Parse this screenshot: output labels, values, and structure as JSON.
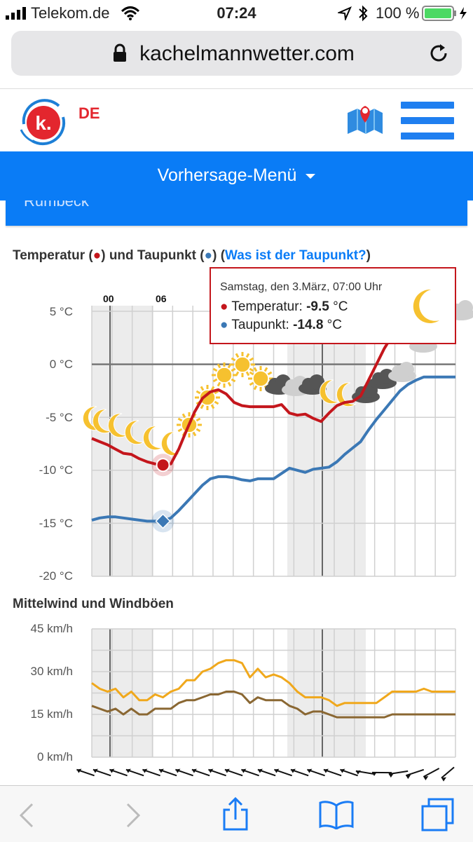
{
  "status_bar": {
    "carrier": "Telekom.de",
    "time": "07:24",
    "battery_percent": "100 %",
    "battery_level": 1.0
  },
  "browser": {
    "url": "kachelmannwetter.com"
  },
  "header": {
    "logo_letter": "k.",
    "language": "DE"
  },
  "menu": {
    "label": "Vorhersage-Menü",
    "location_partial": "Rumbeck"
  },
  "temp_chart_title": {
    "part1": "Temperatur (",
    "dot1": "●",
    "part2": ") und Taupunkt (",
    "dot2": "●",
    "part3": ") (",
    "link": "Was ist der Taupunkt?",
    "part4": ")"
  },
  "tooltip": {
    "date": "Samstag, den 3.März, 07:00 Uhr",
    "temp_label": "Temperatur: ",
    "temp_value": "-9.5",
    "temp_unit": " °C",
    "dew_label": "Taupunkt: ",
    "dew_value": "-14.8",
    "dew_unit": " °C"
  },
  "wind_chart_title": "Mittelwind und Windböen",
  "chart_data": [
    {
      "type": "line",
      "hour_labels": [
        "00",
        "06"
      ],
      "x": [
        0,
        1,
        2,
        3,
        4,
        5,
        6,
        7,
        8,
        9,
        10,
        11,
        12,
        13,
        14,
        15,
        16,
        17,
        18,
        19,
        20,
        21,
        22,
        23,
        24,
        25,
        26,
        27,
        28,
        29,
        30,
        31,
        32,
        33,
        34,
        35,
        36,
        37,
        38,
        39,
        40,
        41,
        42,
        43,
        44,
        45,
        46
      ],
      "series": [
        {
          "name": "Temperatur",
          "color": "#c4161c",
          "values": [
            -7.0,
            -7.3,
            -7.6,
            -8.0,
            -8.4,
            -8.5,
            -8.9,
            -9.2,
            -9.4,
            -9.5,
            -9.4,
            -8.0,
            -6.2,
            -4.5,
            -3.2,
            -2.6,
            -2.4,
            -2.8,
            -3.6,
            -3.9,
            -4.0,
            -4.0,
            -4.0,
            -4.0,
            -3.8,
            -4.6,
            -4.8,
            -4.7,
            -5.1,
            -5.4,
            -4.6,
            -3.9,
            -3.6,
            -3.5,
            -3.0,
            -1.5,
            0.0,
            1.5,
            2.7,
            3.0,
            3.2,
            3.4,
            3.6,
            3.6,
            3.6,
            3.6,
            3.6
          ]
        },
        {
          "name": "Taupunkt",
          "color": "#3b78b5",
          "values": [
            -14.7,
            -14.5,
            -14.4,
            -14.4,
            -14.5,
            -14.6,
            -14.7,
            -14.8,
            -14.8,
            -14.8,
            -14.5,
            -13.8,
            -13.0,
            -12.2,
            -11.4,
            -10.8,
            -10.6,
            -10.6,
            -10.7,
            -10.9,
            -11.0,
            -10.8,
            -10.8,
            -10.8,
            -10.3,
            -9.8,
            -10.0,
            -10.2,
            -9.9,
            -9.8,
            -9.7,
            -9.2,
            -8.5,
            -7.9,
            -7.3,
            -6.2,
            -5.2,
            -4.3,
            -3.4,
            -2.5,
            -1.9,
            -1.5,
            -1.2,
            -1.2,
            -1.2,
            -1.2,
            -1.2
          ]
        }
      ],
      "y_tick_labels": [
        "5 °C",
        "0 °C",
        "-5 °C",
        "-10 °C",
        "-15 °C",
        "-20 °C"
      ],
      "ylim": [
        -20,
        5
      ],
      "highlight_index": 9,
      "grid": true
    },
    {
      "type": "line",
      "x": [
        0,
        1,
        2,
        3,
        4,
        5,
        6,
        7,
        8,
        9,
        10,
        11,
        12,
        13,
        14,
        15,
        16,
        17,
        18,
        19,
        20,
        21,
        22,
        23,
        24,
        25,
        26,
        27,
        28,
        29,
        30,
        31,
        32,
        33,
        34,
        35,
        36,
        37,
        38,
        39,
        40,
        41,
        42,
        43,
        44,
        45,
        46
      ],
      "series": [
        {
          "name": "Windböen",
          "color": "#f0a81c",
          "values": [
            26,
            24,
            23,
            24,
            21,
            23,
            20,
            20,
            22,
            21,
            23,
            24,
            27,
            27,
            30,
            31,
            33,
            34,
            34,
            33,
            28,
            31,
            28,
            29,
            28,
            26,
            23,
            21,
            21,
            21,
            20,
            18,
            19,
            19,
            19,
            19,
            19,
            21,
            23,
            23,
            23,
            23,
            24,
            23,
            23,
            23,
            23
          ]
        },
        {
          "name": "Mittelwind",
          "color": "#8a6732",
          "values": [
            18,
            17,
            16,
            17,
            15,
            17,
            15,
            15,
            17,
            17,
            17,
            19,
            20,
            20,
            21,
            22,
            22,
            23,
            23,
            22,
            19,
            21,
            20,
            20,
            20,
            18,
            17,
            15,
            16,
            16,
            15,
            14,
            14,
            14,
            14,
            14,
            14,
            14,
            15,
            15,
            15,
            15,
            15,
            15,
            15,
            15,
            15
          ]
        }
      ],
      "y_tick_labels": [
        "45 km/h",
        "30 km/h",
        "15 km/h",
        "0 km/h"
      ],
      "ylim": [
        0,
        45
      ],
      "grid": true
    }
  ],
  "toolbar": {
    "back_icon": "chevron-left-icon",
    "forward_icon": "chevron-right-icon",
    "share_icon": "share-icon",
    "bookmarks_icon": "book-icon",
    "tabs_icon": "tabs-icon"
  },
  "colors": {
    "accent_blue": "#0a7cf6",
    "temperature_red": "#c4161c",
    "dewpoint_blue": "#3b78b5",
    "gust_orange": "#f0a81c",
    "wind_brown": "#8a6732"
  }
}
